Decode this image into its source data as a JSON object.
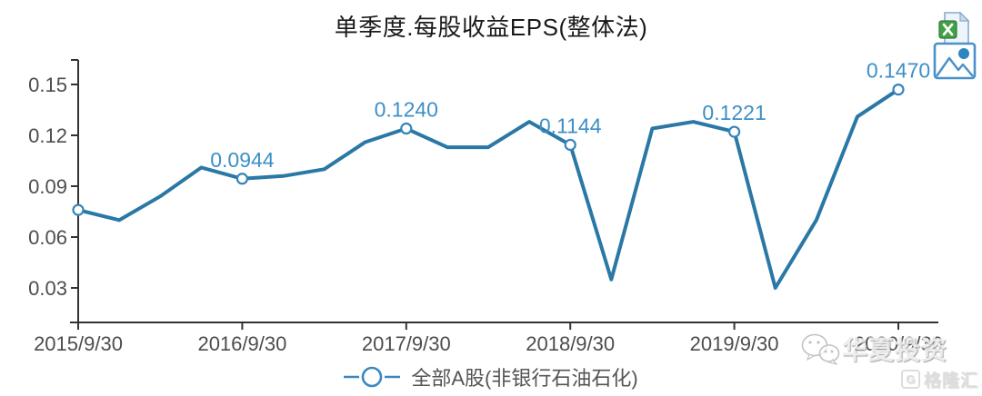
{
  "chart_data": {
    "type": "line",
    "title": "单季度.每股收益EPS(整体法)",
    "x": [
      "2015/9/30",
      "2015/12/31",
      "2016/3/31",
      "2016/6/30",
      "2016/9/30",
      "2016/12/31",
      "2017/3/31",
      "2017/6/30",
      "2017/9/30",
      "2017/12/31",
      "2018/3/31",
      "2018/6/30",
      "2018/9/30",
      "2018/12/31",
      "2019/3/31",
      "2019/6/30",
      "2019/9/30",
      "2019/12/31",
      "2020/3/31",
      "2020/6/30",
      "2020/9/30"
    ],
    "series": [
      {
        "name": "全部A股(非银行石油石化)",
        "values": [
          0.076,
          0.07,
          0.084,
          0.101,
          0.0944,
          0.096,
          0.1,
          0.116,
          0.124,
          0.113,
          0.113,
          0.128,
          0.1144,
          0.035,
          0.124,
          0.128,
          0.1221,
          0.03,
          0.07,
          0.131,
          0.147
        ]
      }
    ],
    "x_tick_labels": [
      "2015/9/30",
      "2016/9/30",
      "2017/9/30",
      "2018/9/30",
      "2019/9/30",
      "2020/9/30"
    ],
    "y_ticks": [
      "0.15",
      "0.12",
      "0.09",
      "0.06",
      "0.03"
    ],
    "ylim": [
      0.01,
      0.165
    ],
    "grid": false,
    "legend_position": "bottom",
    "marker_indices": [
      0,
      4,
      8,
      12,
      16,
      20
    ],
    "point_labels": {
      "4": "0.0944",
      "8": "0.1240",
      "12": "0.1144",
      "16": "0.1221",
      "20": "0.1470"
    }
  },
  "legend": {
    "label": "全部A股(非银行石油石化)"
  },
  "toolbar": {
    "excel_icon": "export-to-excel",
    "image_icon": "save-as-image"
  },
  "watermarks": {
    "wechat_icon": "wechat-icon",
    "wechat_text": "华夏投资",
    "logo_letter": "G",
    "logo_text": "格隆汇"
  },
  "colors": {
    "line": "#2a78a5",
    "marker_stroke": "#3585ba",
    "marker_fill": "#ffffff",
    "point_label": "#3d8fc6",
    "axis": "#333333",
    "tick_text": "#4d4d4d",
    "title_text": "#1a1a1a",
    "legend_symbol": "#3c87c0",
    "excel_green": "#43a047",
    "icon_blue": "#4a90c9"
  }
}
